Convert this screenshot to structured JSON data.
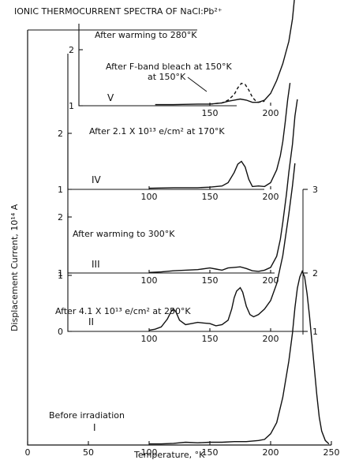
{
  "title": "IONIC THERMOCURRENT SPECTRA OF NaCl:Pb²⁺",
  "ylabel": "Displacement Current, 10¹⁴ A",
  "xlabel": "Temperature, °K",
  "chart_data": [
    {
      "type": "line",
      "panel": "I",
      "annotation": "Before irradiation",
      "xlim": [
        0,
        250
      ],
      "ylim": [
        0,
        3
      ],
      "xticks": [
        "0",
        "50",
        "100",
        "150",
        "200",
        "250"
      ],
      "yticks_right": [
        "1",
        "2",
        "3"
      ],
      "series": [
        {
          "x": [
            100,
            110,
            120,
            130,
            140,
            150,
            160,
            170,
            180,
            190,
            195,
            200,
            205,
            210,
            215,
            218,
            220,
            222,
            224,
            226,
            228,
            230,
            232,
            235,
            238,
            240,
            242,
            245,
            248
          ],
          "y": [
            0.02,
            0.02,
            0.03,
            0.05,
            0.04,
            0.05,
            0.05,
            0.06,
            0.06,
            0.08,
            0.1,
            0.2,
            0.4,
            0.85,
            1.5,
            2.0,
            2.45,
            2.8,
            3.0,
            3.1,
            3.0,
            2.7,
            2.3,
            1.6,
            0.9,
            0.5,
            0.25,
            0.08,
            0.02
          ]
        }
      ]
    },
    {
      "type": "line",
      "panel": "II",
      "annotation": "After 4.1 X 10¹³ e/cm² at 250°K",
      "xticks": [
        "100",
        "150",
        "200"
      ],
      "yticks_left": [
        "0",
        "1"
      ],
      "series": [
        {
          "x": [
            100,
            105,
            110,
            115,
            118,
            120,
            122,
            125,
            130,
            135,
            140,
            145,
            150,
            155,
            160,
            165,
            168,
            170,
            172,
            175,
            177,
            180,
            183,
            186,
            190,
            195,
            200,
            205,
            210,
            215,
            218,
            220
          ],
          "y": [
            0.02,
            0.04,
            0.08,
            0.22,
            0.35,
            0.4,
            0.35,
            0.2,
            0.12,
            0.14,
            0.16,
            0.15,
            0.14,
            0.1,
            0.12,
            0.2,
            0.4,
            0.6,
            0.72,
            0.78,
            0.7,
            0.45,
            0.3,
            0.26,
            0.3,
            0.4,
            0.55,
            0.85,
            1.35,
            2.1,
            2.6,
            3.0
          ]
        }
      ]
    },
    {
      "type": "line",
      "panel": "III",
      "annotation": "After warming to 300°K",
      "xticks": [
        "100",
        "150",
        "200"
      ],
      "yticks_left": [
        "1",
        "2"
      ],
      "series": [
        {
          "x": [
            100,
            110,
            120,
            130,
            140,
            150,
            155,
            160,
            165,
            170,
            175,
            180,
            185,
            190,
            195,
            200,
            205,
            208,
            210,
            213,
            215,
            218,
            220,
            222
          ],
          "y": [
            0.01,
            0.02,
            0.04,
            0.05,
            0.06,
            0.09,
            0.07,
            0.05,
            0.09,
            0.1,
            0.11,
            0.08,
            0.04,
            0.03,
            0.05,
            0.1,
            0.3,
            0.6,
            0.9,
            1.4,
            1.8,
            2.3,
            2.8,
            3.1
          ]
        }
      ]
    },
    {
      "type": "line",
      "panel": "IV",
      "annotation": "After 2.1 X 10¹³ e/cm² at 170°K",
      "xticks": [
        "100",
        "150",
        "200"
      ],
      "yticks_left": [
        "1",
        "2"
      ],
      "series": [
        {
          "x": [
            100,
            120,
            140,
            150,
            160,
            165,
            170,
            173,
            176,
            179,
            182,
            185,
            190,
            195,
            200,
            205,
            208,
            210,
            212,
            214,
            216
          ],
          "y": [
            0.02,
            0.03,
            0.03,
            0.04,
            0.06,
            0.12,
            0.3,
            0.45,
            0.5,
            0.4,
            0.18,
            0.05,
            0.06,
            0.05,
            0.12,
            0.35,
            0.6,
            0.85,
            1.2,
            1.6,
            1.9
          ]
        }
      ]
    },
    {
      "type": "line",
      "panel": "V",
      "annotation": "After warming to 280°K",
      "annotation2": "After F-band bleach at 150°K",
      "xticks": [
        "150",
        "200"
      ],
      "yticks_left": [
        "1",
        "2"
      ],
      "series": [
        {
          "name": "solid",
          "x": [
            105,
            120,
            140,
            150,
            160,
            165,
            170,
            175,
            180,
            185,
            190,
            195,
            200,
            205,
            210,
            215,
            218,
            220
          ],
          "y": [
            0.02,
            0.02,
            0.03,
            0.03,
            0.05,
            0.08,
            0.1,
            0.12,
            0.1,
            0.06,
            0.06,
            0.1,
            0.22,
            0.45,
            0.75,
            1.15,
            1.55,
            2.0
          ]
        },
        {
          "name": "dashed",
          "x": [
            150,
            160,
            165,
            170,
            173,
            176,
            179,
            182,
            185,
            188,
            190,
            195
          ],
          "y": [
            0.03,
            0.05,
            0.1,
            0.2,
            0.32,
            0.4,
            0.38,
            0.28,
            0.15,
            0.08,
            0.06,
            0.08
          ]
        }
      ]
    }
  ],
  "labels": {
    "roman_I": "I",
    "roman_II": "II",
    "roman_III": "III",
    "roman_IV": "IV",
    "roman_V": "V"
  }
}
